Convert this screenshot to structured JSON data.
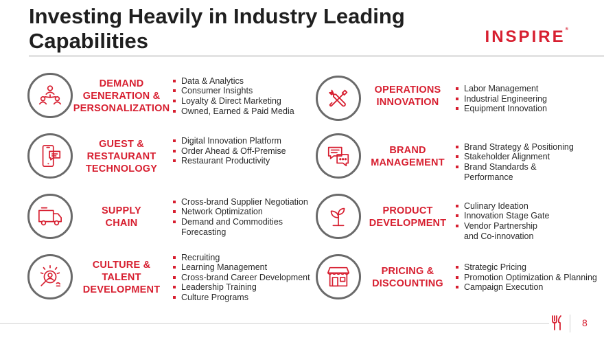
{
  "title": "Investing Heavily in Industry Leading Capabilities",
  "logo_text": "INSPIRE",
  "logo_mark": "®",
  "page_number": "8",
  "colors": {
    "accent": "#d71f30",
    "icon_stroke": "#6a6a6a",
    "rule": "#e3e3e3"
  },
  "capabilities": [
    {
      "icon": "people-network-icon",
      "lines": [
        "DEMAND",
        "GENERATION &",
        "PERSONALIZATION"
      ],
      "bullets": [
        "Data & Analytics",
        "Consumer Insights",
        "Loyalty & Direct Marketing",
        "Owned, Earned & Paid Media"
      ]
    },
    {
      "icon": "wrench-screwdriver-icon",
      "lines": [
        "OPERATIONS",
        "INNOVATION"
      ],
      "bullets": [
        "Labor Management",
        "Industrial Engineering",
        "Equipment Innovation"
      ]
    },
    {
      "icon": "mobile-chat-icon",
      "lines": [
        "GUEST &",
        "RESTAURANT",
        "TECHNOLOGY"
      ],
      "bullets": [
        "Digital Innovation Platform",
        "Order Ahead & Off-Premise",
        "Restaurant Productivity"
      ]
    },
    {
      "icon": "chat-bubbles-icon",
      "lines": [
        "BRAND",
        "MANAGEMENT"
      ],
      "bullets": [
        "Brand Strategy & Positioning",
        "Stakeholder Alignment",
        "Brand Standards &",
        "Performance"
      ]
    },
    {
      "icon": "delivery-truck-icon",
      "lines": [
        "SUPPLY",
        "CHAIN"
      ],
      "bullets": [
        "Cross-brand Supplier Negotiation",
        "Network Optimization",
        "Demand and Commodities",
        "Forecasting"
      ]
    },
    {
      "icon": "sprout-icon",
      "lines": [
        "PRODUCT",
        "DEVELOPMENT"
      ],
      "bullets": [
        "Culinary Ideation",
        "Innovation Stage Gate",
        "Vendor Partnership",
        "and Co-innovation"
      ]
    },
    {
      "icon": "talent-search-icon",
      "lines": [
        "CULTURE &",
        "TALENT",
        "DEVELOPMENT"
      ],
      "bullets": [
        "Recruiting",
        "Learning Management",
        "Cross-brand Career Development",
        "Leadership Training",
        "Culture Programs"
      ]
    },
    {
      "icon": "storefront-icon",
      "lines": [
        "PRICING &",
        "DISCOUNTING"
      ],
      "bullets": [
        "Strategic Pricing",
        "Promotion Optimization & Planning",
        "Campaign Execution"
      ]
    }
  ]
}
